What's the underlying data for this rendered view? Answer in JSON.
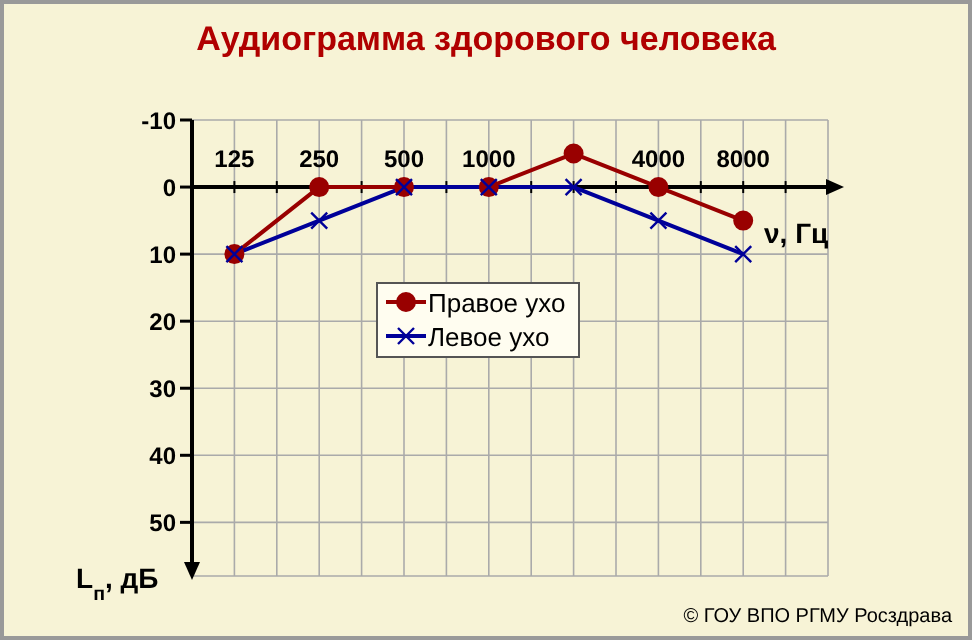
{
  "chart_data": {
    "type": "line",
    "title": "Аудиограмма здорового человека",
    "xlabel": "ν, Гц",
    "ylabel": "L$_{п}$, дБ",
    "categories": [
      "125",
      "250",
      "500",
      "1000",
      null,
      "4000",
      "8000"
    ],
    "series": [
      {
        "name": "Правое ухо",
        "color": "#990000",
        "marker": "circle",
        "values": [
          10,
          0,
          0,
          0,
          -5,
          0,
          5
        ]
      },
      {
        "name": "Левое ухо",
        "color": "#000099",
        "marker": "cross",
        "values": [
          10,
          5,
          0,
          0,
          0,
          5,
          10
        ]
      }
    ],
    "ylim": [
      58,
      -10
    ],
    "yticks": [
      -10,
      0,
      10,
      20,
      30,
      40,
      50
    ],
    "grid": true,
    "legend": "center",
    "annotations": [
      "© ГОУ ВПО РГМУ Росздрава"
    ]
  }
}
